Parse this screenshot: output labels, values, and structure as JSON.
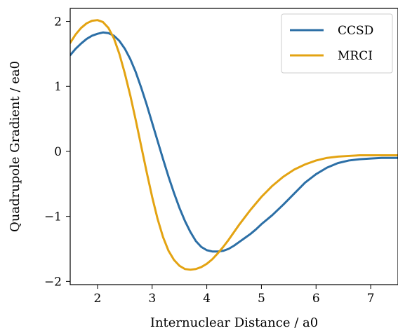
{
  "chart_data": {
    "type": "line",
    "title": "",
    "xlabel": "Internuclear Distance / a0",
    "ylabel": "Quadrupole Gradient / ea0",
    "xlim": [
      1.5,
      7.5
    ],
    "ylim": [
      -2.05,
      2.2
    ],
    "xticks": [
      2,
      3,
      4,
      5,
      6,
      7
    ],
    "yticks": [
      -2,
      -1,
      0,
      1,
      2
    ],
    "grid": false,
    "legend_position": "top-right",
    "series": [
      {
        "name": "CCSD",
        "color": "#2c6fa6",
        "x": [
          1.5,
          1.6,
          1.7,
          1.8,
          1.9,
          2.0,
          2.1,
          2.2,
          2.3,
          2.4,
          2.5,
          2.6,
          2.7,
          2.8,
          2.9,
          3.0,
          3.1,
          3.2,
          3.3,
          3.4,
          3.5,
          3.6,
          3.7,
          3.8,
          3.9,
          4.0,
          4.1,
          4.2,
          4.3,
          4.4,
          4.5,
          4.6,
          4.7,
          4.8,
          4.9,
          5.0,
          5.2,
          5.4,
          5.6,
          5.8,
          6.0,
          6.2,
          6.4,
          6.6,
          6.8,
          7.0,
          7.2,
          7.5
        ],
        "y": [
          1.48,
          1.58,
          1.66,
          1.73,
          1.78,
          1.81,
          1.83,
          1.82,
          1.78,
          1.7,
          1.58,
          1.42,
          1.22,
          0.98,
          0.72,
          0.44,
          0.16,
          -0.12,
          -0.39,
          -0.64,
          -0.87,
          -1.07,
          -1.24,
          -1.38,
          -1.47,
          -1.52,
          -1.54,
          -1.54,
          -1.53,
          -1.5,
          -1.45,
          -1.39,
          -1.33,
          -1.27,
          -1.2,
          -1.12,
          -0.98,
          -0.82,
          -0.65,
          -0.48,
          -0.35,
          -0.25,
          -0.18,
          -0.14,
          -0.12,
          -0.11,
          -0.1,
          -0.1
        ]
      },
      {
        "name": "MRCI",
        "color": "#e3a312",
        "x": [
          1.5,
          1.6,
          1.7,
          1.8,
          1.9,
          2.0,
          2.1,
          2.2,
          2.3,
          2.4,
          2.5,
          2.6,
          2.7,
          2.8,
          2.9,
          3.0,
          3.1,
          3.2,
          3.3,
          3.4,
          3.5,
          3.6,
          3.7,
          3.8,
          3.9,
          4.0,
          4.1,
          4.2,
          4.3,
          4.4,
          4.5,
          4.6,
          4.7,
          4.8,
          4.9,
          5.0,
          5.2,
          5.4,
          5.6,
          5.8,
          6.0,
          6.2,
          6.4,
          6.6,
          6.8,
          7.0,
          7.2,
          7.5
        ],
        "y": [
          1.67,
          1.8,
          1.9,
          1.97,
          2.01,
          2.02,
          1.99,
          1.9,
          1.74,
          1.5,
          1.2,
          0.86,
          0.48,
          0.08,
          -0.32,
          -0.7,
          -1.04,
          -1.32,
          -1.53,
          -1.67,
          -1.76,
          -1.81,
          -1.82,
          -1.81,
          -1.78,
          -1.73,
          -1.66,
          -1.57,
          -1.47,
          -1.36,
          -1.24,
          -1.12,
          -1.01,
          -0.9,
          -0.8,
          -0.7,
          -0.53,
          -0.39,
          -0.28,
          -0.2,
          -0.14,
          -0.1,
          -0.08,
          -0.07,
          -0.06,
          -0.06,
          -0.06,
          -0.06
        ]
      }
    ]
  }
}
